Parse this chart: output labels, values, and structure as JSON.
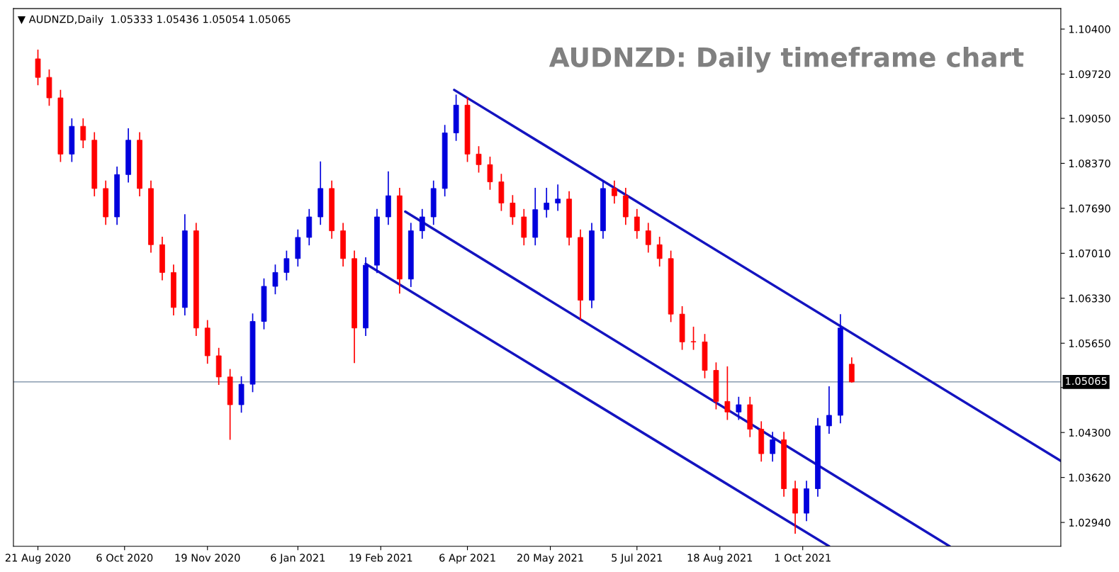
{
  "chart_data": {
    "type": "candlestick",
    "title": "AUDNZD: Daily timeframe chart",
    "annotations": [
      "▼ AUDNZD,Daily  1.05333 1.05436 1.05054 1.05065"
    ],
    "xlim": [
      "2020-08-08",
      "2022-02-15"
    ],
    "xticks": [
      {
        "value": "2020-08-21",
        "label": "21 Aug 2020"
      },
      {
        "value": "2020-10-06",
        "label": "6 Oct 2020"
      },
      {
        "value": "2020-11-19",
        "label": "19 Nov 2020"
      },
      {
        "value": "2021-01-06",
        "label": "6 Jan 2021"
      },
      {
        "value": "2021-02-19",
        "label": "19 Feb 2021"
      },
      {
        "value": "2021-04-06",
        "label": "6 Apr 2021"
      },
      {
        "value": "2021-05-20",
        "label": "20 May 2021"
      },
      {
        "value": "2021-07-05",
        "label": "5 Jul 2021"
      },
      {
        "value": "2021-08-18",
        "label": "18 Aug 2021"
      },
      {
        "value": "2021-10-01",
        "label": "1 Oct 2021"
      }
    ],
    "ylim": [
      1.0258,
      1.1071
    ],
    "yticks": [
      {
        "value": 1.104,
        "label": "1.10400"
      },
      {
        "value": 1.0972,
        "label": "1.09720"
      },
      {
        "value": 1.0905,
        "label": "1.09050"
      },
      {
        "value": 1.0837,
        "label": "1.08370"
      },
      {
        "value": 1.0769,
        "label": "1.07690"
      },
      {
        "value": 1.0701,
        "label": "1.07010"
      },
      {
        "value": 1.0633,
        "label": "1.06330"
      },
      {
        "value": 1.0565,
        "label": "1.05650"
      },
      {
        "value": 1.0498,
        "label": null
      },
      {
        "value": 1.043,
        "label": "1.04300"
      },
      {
        "value": 1.0362,
        "label": "1.03620"
      },
      {
        "value": 1.0294,
        "label": "1.02940"
      }
    ],
    "grid": false,
    "ref_lines": [
      {
        "axis": "y",
        "value": 1.05065,
        "label": "1.05065",
        "color": "#8a9bb0"
      }
    ],
    "series": [
      {
        "x": [
          "2020-08-21",
          "2020-08-27",
          "2020-09-02",
          "2020-09-08",
          "2020-09-14",
          "2020-09-20",
          "2020-09-26",
          "2020-10-02",
          "2020-10-08",
          "2020-10-14",
          "2020-10-20",
          "2020-10-26",
          "2020-11-01",
          "2020-11-07",
          "2020-11-13",
          "2020-11-19",
          "2020-11-25",
          "2020-12-01",
          "2020-12-07",
          "2020-12-13",
          "2020-12-19",
          "2020-12-25",
          "2020-12-31",
          "2021-01-06",
          "2021-01-12",
          "2021-01-18",
          "2021-01-24",
          "2021-01-30",
          "2021-02-05",
          "2021-02-11",
          "2021-02-17",
          "2021-02-23",
          "2021-03-01",
          "2021-03-07",
          "2021-03-13",
          "2021-03-19",
          "2021-03-25",
          "2021-03-31",
          "2021-04-06",
          "2021-04-12",
          "2021-04-18",
          "2021-04-24",
          "2021-04-30",
          "2021-05-06",
          "2021-05-12",
          "2021-05-18",
          "2021-05-24",
          "2021-05-30",
          "2021-06-05",
          "2021-06-11",
          "2021-06-17",
          "2021-06-23",
          "2021-06-29",
          "2021-07-05",
          "2021-07-11",
          "2021-07-17",
          "2021-07-23",
          "2021-07-29",
          "2021-08-04",
          "2021-08-10",
          "2021-08-16",
          "2021-08-22",
          "2021-08-28",
          "2021-09-03",
          "2021-09-09",
          "2021-09-15",
          "2021-09-21",
          "2021-09-27",
          "2021-10-03",
          "2021-10-09",
          "2021-10-15",
          "2021-10-21",
          "2021-10-27"
        ],
        "ohlc": [
          [
            1.0995,
            1.1009,
            1.0955,
            1.0967
          ],
          [
            1.0967,
            1.0979,
            1.0924,
            1.0936
          ],
          [
            1.0936,
            1.0948,
            1.0839,
            1.0851
          ],
          [
            1.0851,
            1.0905,
            1.0839,
            1.0893
          ],
          [
            1.0893,
            1.0905,
            1.086,
            1.0872
          ],
          [
            1.0872,
            1.0884,
            1.0787,
            1.0799
          ],
          [
            1.0799,
            1.0811,
            1.0744,
            1.0756
          ],
          [
            1.0756,
            1.0832,
            1.0744,
            1.082
          ],
          [
            1.082,
            1.089,
            1.0808,
            1.0872
          ],
          [
            1.0872,
            1.0884,
            1.0787,
            1.0799
          ],
          [
            1.0799,
            1.0811,
            1.0702,
            1.0714
          ],
          [
            1.0714,
            1.0726,
            1.066,
            1.0672
          ],
          [
            1.0672,
            1.0684,
            1.0607,
            1.0619
          ],
          [
            1.0619,
            1.076,
            1.0607,
            1.0735
          ],
          [
            1.0735,
            1.0747,
            1.0576,
            1.0588
          ],
          [
            1.0588,
            1.06,
            1.0534,
            1.0546
          ],
          [
            1.0546,
            1.0558,
            1.0502,
            1.0514
          ],
          [
            1.0514,
            1.0526,
            1.0419,
            1.0472
          ],
          [
            1.0472,
            1.0515,
            1.046,
            1.0503
          ],
          [
            1.0503,
            1.061,
            1.0491,
            1.0598
          ],
          [
            1.0598,
            1.0663,
            1.0586,
            1.0651
          ],
          [
            1.0651,
            1.0684,
            1.0639,
            1.0672
          ],
          [
            1.0672,
            1.0705,
            1.066,
            1.0693
          ],
          [
            1.0693,
            1.0737,
            1.0681,
            1.0725
          ],
          [
            1.0725,
            1.0768,
            1.0713,
            1.0756
          ],
          [
            1.0756,
            1.084,
            1.0744,
            1.0799
          ],
          [
            1.0799,
            1.0811,
            1.0723,
            1.0735
          ],
          [
            1.0735,
            1.0747,
            1.0681,
            1.0693
          ],
          [
            1.0693,
            1.0705,
            1.0535,
            1.0588
          ],
          [
            1.0588,
            1.0695,
            1.0576,
            1.0683
          ],
          [
            1.0683,
            1.0768,
            1.0671,
            1.0756
          ],
          [
            1.0756,
            1.0825,
            1.0744,
            1.0788
          ],
          [
            1.0788,
            1.08,
            1.064,
            1.0662
          ],
          [
            1.0662,
            1.0747,
            1.065,
            1.0735
          ],
          [
            1.0735,
            1.0768,
            1.0723,
            1.0756
          ],
          [
            1.0756,
            1.0811,
            1.0744,
            1.0799
          ],
          [
            1.0799,
            1.0895,
            1.0787,
            1.0883
          ],
          [
            1.0883,
            1.0941,
            1.0871,
            1.0925
          ],
          [
            1.0925,
            1.0937,
            1.0839,
            1.0851
          ],
          [
            1.0851,
            1.0863,
            1.0823,
            1.0835
          ],
          [
            1.0835,
            1.0847,
            1.0797,
            1.0809
          ],
          [
            1.0809,
            1.0821,
            1.0765,
            1.0777
          ],
          [
            1.0777,
            1.0789,
            1.0744,
            1.0756
          ],
          [
            1.0756,
            1.0768,
            1.0713,
            1.0725
          ],
          [
            1.0725,
            1.08,
            1.0713,
            1.0767
          ],
          [
            1.0767,
            1.08,
            1.0755,
            1.0777
          ],
          [
            1.0777,
            1.0805,
            1.0765,
            1.0783
          ],
          [
            1.0783,
            1.0795,
            1.0713,
            1.0725
          ],
          [
            1.0725,
            1.0737,
            1.06,
            1.063
          ],
          [
            1.063,
            1.0747,
            1.0618,
            1.0735
          ],
          [
            1.0735,
            1.0811,
            1.0723,
            1.0799
          ],
          [
            1.0799,
            1.0811,
            1.0776,
            1.0788
          ],
          [
            1.0788,
            1.08,
            1.0744,
            1.0756
          ],
          [
            1.0756,
            1.0768,
            1.0723,
            1.0735
          ],
          [
            1.0735,
            1.0747,
            1.0702,
            1.0714
          ],
          [
            1.0714,
            1.0726,
            1.0681,
            1.0693
          ],
          [
            1.0693,
            1.0705,
            1.0597,
            1.0609
          ],
          [
            1.0609,
            1.0621,
            1.0555,
            1.0567
          ],
          [
            1.0567,
            1.059,
            1.0555,
            1.0567
          ],
          [
            1.0567,
            1.0579,
            1.0512,
            1.0524
          ],
          [
            1.0524,
            1.0536,
            1.0465,
            1.0477
          ],
          [
            1.0477,
            1.053,
            1.0449,
            1.0461
          ],
          [
            1.0461,
            1.0484,
            1.0449,
            1.0472
          ],
          [
            1.0472,
            1.0484,
            1.0423,
            1.0435
          ],
          [
            1.0435,
            1.0447,
            1.0386,
            1.0398
          ],
          [
            1.0398,
            1.0431,
            1.0386,
            1.0419
          ],
          [
            1.0419,
            1.0431,
            1.0333,
            1.0345
          ],
          [
            1.0345,
            1.0357,
            1.0277,
            1.0308
          ],
          [
            1.0308,
            1.0357,
            1.0296,
            1.0345
          ],
          [
            1.0345,
            1.0452,
            1.0333,
            1.044
          ],
          [
            1.044,
            1.05,
            1.0428,
            1.0456
          ],
          [
            1.0456,
            1.0609,
            1.0444,
            1.0588
          ],
          [
            1.05333,
            1.05436,
            1.05054,
            1.05065
          ]
        ],
        "colors": [
          "#ff0000",
          "#ff0000",
          "#ff0000",
          "#0000dd",
          "#ff0000",
          "#ff0000",
          "#ff0000",
          "#0000dd",
          "#0000dd",
          "#ff0000",
          "#ff0000",
          "#ff0000",
          "#ff0000",
          "#0000dd",
          "#ff0000",
          "#ff0000",
          "#ff0000",
          "#ff0000",
          "#0000dd",
          "#0000dd",
          "#0000dd",
          "#0000dd",
          "#0000dd",
          "#0000dd",
          "#0000dd",
          "#0000dd",
          "#ff0000",
          "#ff0000",
          "#ff0000",
          "#0000dd",
          "#0000dd",
          "#0000dd",
          "#ff0000",
          "#0000dd",
          "#0000dd",
          "#0000dd",
          "#0000dd",
          "#0000dd",
          "#ff0000",
          "#ff0000",
          "#ff0000",
          "#ff0000",
          "#ff0000",
          "#ff0000",
          "#0000dd",
          "#0000dd",
          "#0000dd",
          "#ff0000",
          "#ff0000",
          "#0000dd",
          "#0000dd",
          "#ff0000",
          "#ff0000",
          "#ff0000",
          "#ff0000",
          "#ff0000",
          "#ff0000",
          "#ff0000",
          "#ff0000",
          "#ff0000",
          "#ff0000",
          "#ff0000",
          "#0000dd",
          "#ff0000",
          "#ff0000",
          "#0000dd",
          "#ff0000",
          "#ff0000",
          "#0000dd",
          "#0000dd",
          "#0000dd",
          "#0000dd",
          "#ff0000"
        ]
      },
      {
        "type": "line",
        "x": [
          "2021-03-30",
          "2022-02-15"
        ],
        "values": [
          1.0948,
          1.0387
        ],
        "color": "#1414c0"
      },
      {
        "type": "line",
        "x": [
          "2021-03-04",
          "2021-12-18"
        ],
        "values": [
          1.0764,
          1.0258
        ],
        "color": "#1414c0"
      },
      {
        "type": "line",
        "x": [
          "2021-02-11",
          "2021-10-15"
        ],
        "values": [
          1.0685,
          1.0258
        ],
        "color": "#1414c0"
      }
    ]
  }
}
